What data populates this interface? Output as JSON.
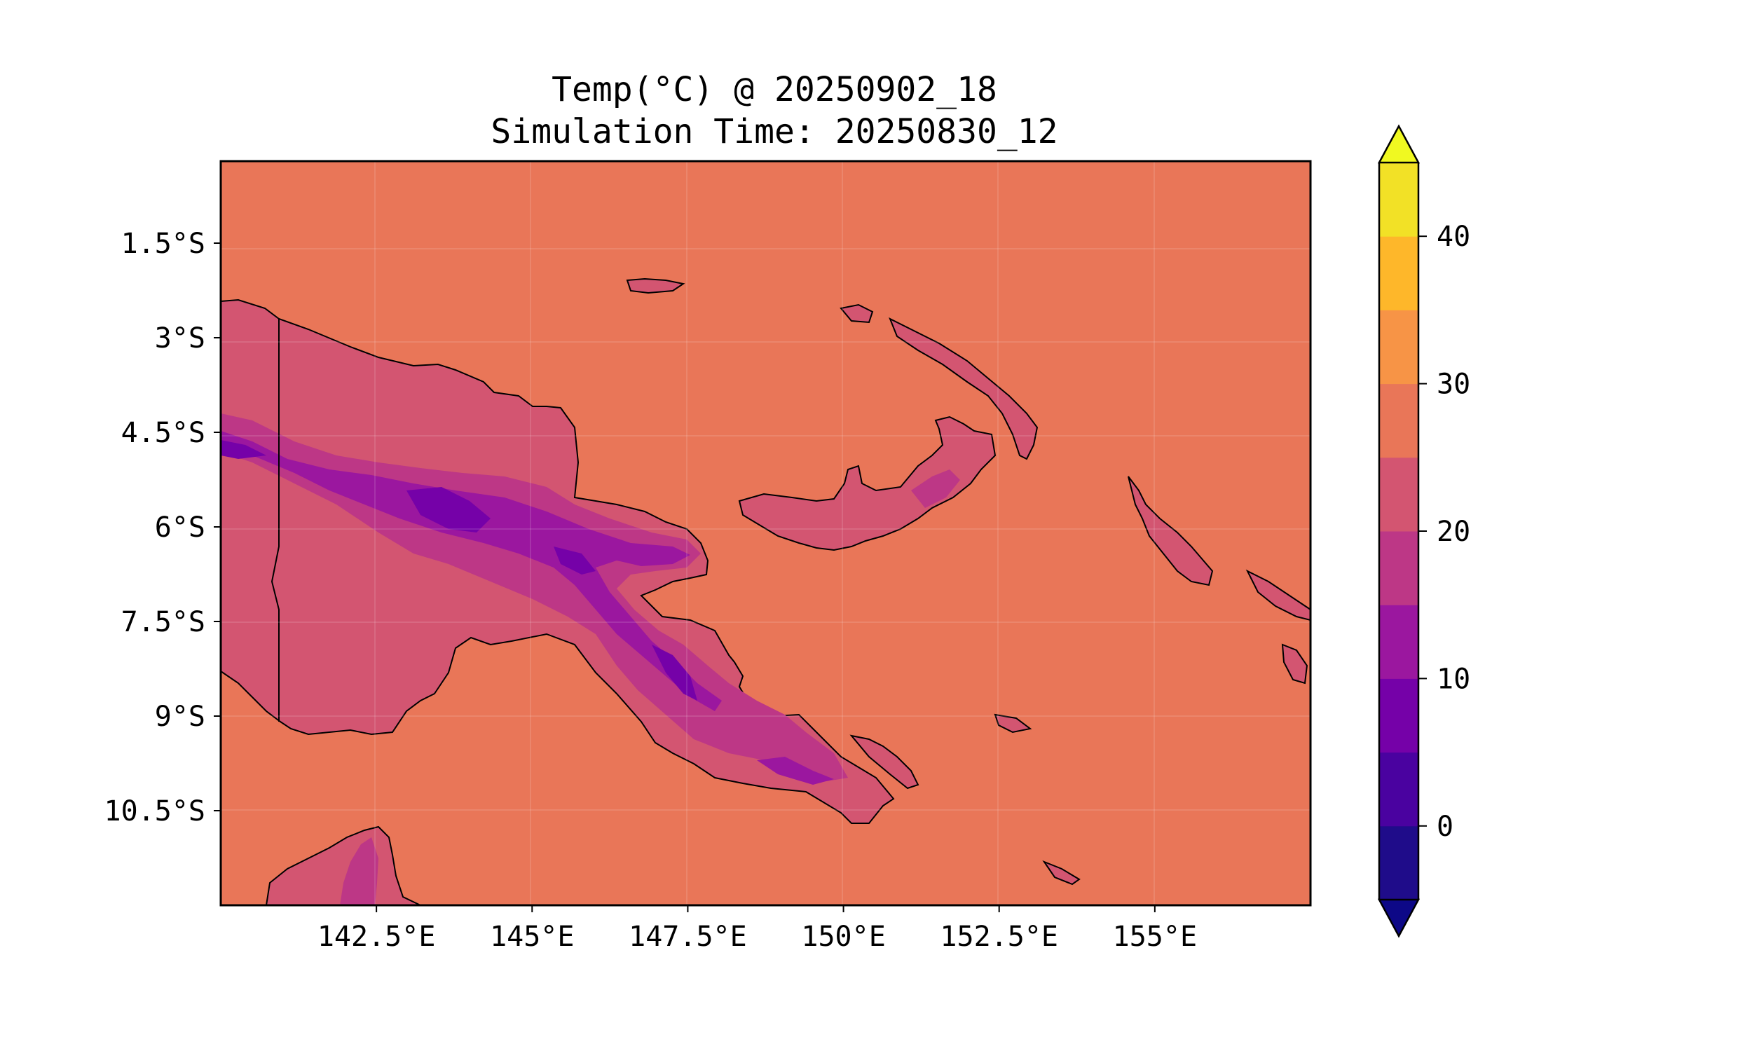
{
  "title": {
    "line1": "Temp(°C) @ 20250902_18",
    "line2": "Simulation Time: 20250830_12"
  },
  "map": {
    "projection": "PlateCarree",
    "lon_range": [
      140.0,
      157.5
    ],
    "lat_range": [
      -12.0,
      -0.2
    ],
    "x_ticks": [
      {
        "value": 142.5,
        "label": "142.5°E"
      },
      {
        "value": 145.0,
        "label": "145°E"
      },
      {
        "value": 147.5,
        "label": "147.5°E"
      },
      {
        "value": 150.0,
        "label": "150°E"
      },
      {
        "value": 152.5,
        "label": "152.5°E"
      },
      {
        "value": 155.0,
        "label": "155°E"
      }
    ],
    "y_ticks": [
      {
        "value": -1.5,
        "label": "1.5°S"
      },
      {
        "value": -3.0,
        "label": "3°S"
      },
      {
        "value": -4.5,
        "label": "4.5°S"
      },
      {
        "value": -6.0,
        "label": "6°S"
      },
      {
        "value": -7.5,
        "label": "7.5°S"
      },
      {
        "value": -9.0,
        "label": "9°S"
      },
      {
        "value": -10.5,
        "label": "10.5°S"
      }
    ],
    "ocean_color": "#e97658"
  },
  "colorbar": {
    "extend": "both",
    "levels": [
      -5,
      0,
      5,
      10,
      15,
      20,
      25,
      30,
      35,
      40,
      45
    ],
    "colors": [
      "#1f0c8a",
      "#4a02a0",
      "#7501a8",
      "#9b179f",
      "#bd3786",
      "#d35571",
      "#e97658",
      "#f79446",
      "#feb72a",
      "#f2e126"
    ],
    "under_color": "#0d0887",
    "over_color": "#f0f921",
    "tick_values": [
      0,
      10,
      20,
      30,
      40
    ],
    "tick_labels": [
      "0",
      "10",
      "20",
      "30",
      "40"
    ]
  }
}
